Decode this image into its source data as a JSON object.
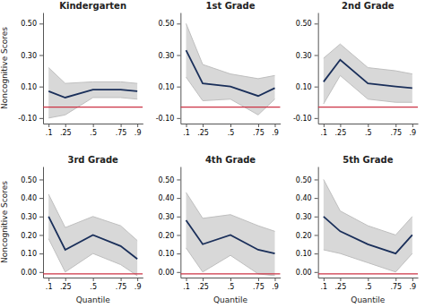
{
  "chart_data": [
    {
      "type": "line",
      "title": "Kindergarten",
      "ylabel": "Noncognitive Scores",
      "x": [
        0.1,
        0.25,
        0.5,
        0.75,
        0.9
      ],
      "xlim": [
        0.05,
        0.95
      ],
      "xticks": [
        {
          "value": 0.1,
          "label": ".1"
        },
        {
          "value": 0.25,
          "label": ".25"
        },
        {
          "value": 0.5,
          "label": ".5"
        },
        {
          "value": 0.75,
          "label": ".75"
        },
        {
          "value": 0.9,
          "label": ".9"
        }
      ],
      "ylim": [
        -0.135,
        0.57
      ],
      "yticks": [
        {
          "value": -0.1,
          "label": "-0.10"
        },
        {
          "value": 0.1,
          "label": "0.10"
        },
        {
          "value": 0.3,
          "label": "0.30"
        },
        {
          "value": 0.5,
          "label": "0.50"
        }
      ],
      "series": [
        {
          "type": "area",
          "color": "#d8d8d8",
          "values": [
            0.22,
            0.12,
            0.13,
            0.13,
            0.12
          ],
          "lower": [
            -0.1,
            -0.08,
            0.03,
            0.03,
            0.02
          ]
        },
        {
          "type": "rule",
          "color": "#cc3344",
          "value": -0.03
        },
        {
          "type": "line",
          "color": "#1a2f5a",
          "values": [
            0.07,
            0.03,
            0.08,
            0.08,
            0.07
          ]
        }
      ]
    },
    {
      "type": "line",
      "title": "1st Grade",
      "x": [
        0.1,
        0.25,
        0.5,
        0.75,
        0.9
      ],
      "xlim": [
        0.05,
        0.95
      ],
      "xticks": [
        {
          "value": 0.1,
          "label": ".1"
        },
        {
          "value": 0.25,
          "label": ".25"
        },
        {
          "value": 0.5,
          "label": ".5"
        },
        {
          "value": 0.75,
          "label": ".75"
        },
        {
          "value": 0.9,
          "label": ".9"
        }
      ],
      "ylim": [
        -0.135,
        0.57
      ],
      "yticks": [
        {
          "value": -0.1,
          "label": "-0.10"
        },
        {
          "value": 0.1,
          "label": "0.10"
        },
        {
          "value": 0.3,
          "label": "0.30"
        },
        {
          "value": 0.5,
          "label": "0.50"
        }
      ],
      "series": [
        {
          "type": "area",
          "color": "#d8d8d8",
          "values": [
            0.5,
            0.24,
            0.18,
            0.15,
            0.17
          ],
          "lower": [
            0.16,
            0.01,
            0.02,
            -0.08,
            0.02
          ]
        },
        {
          "type": "rule",
          "color": "#cc3344",
          "value": -0.03
        },
        {
          "type": "line",
          "color": "#1a2f5a",
          "values": [
            0.33,
            0.12,
            0.1,
            0.04,
            0.09
          ]
        }
      ]
    },
    {
      "type": "line",
      "title": "2nd Grade",
      "x": [
        0.1,
        0.25,
        0.5,
        0.75,
        0.9
      ],
      "xlim": [
        0.05,
        0.95
      ],
      "xticks": [
        {
          "value": 0.1,
          "label": ".1"
        },
        {
          "value": 0.25,
          "label": ".25"
        },
        {
          "value": 0.5,
          "label": ".5"
        },
        {
          "value": 0.75,
          "label": ".75"
        },
        {
          "value": 0.9,
          "label": ".9"
        }
      ],
      "ylim": [
        -0.135,
        0.57
      ],
      "yticks": [
        {
          "value": -0.1,
          "label": "-0.10"
        },
        {
          "value": 0.1,
          "label": "0.10"
        },
        {
          "value": 0.3,
          "label": "0.30"
        },
        {
          "value": 0.5,
          "label": "0.50"
        }
      ],
      "series": [
        {
          "type": "area",
          "color": "#d8d8d8",
          "values": [
            0.28,
            0.37,
            0.22,
            0.2,
            0.18
          ],
          "lower": [
            -0.01,
            0.17,
            0.02,
            0.0,
            0.0
          ]
        },
        {
          "type": "rule",
          "color": "#cc3344",
          "value": -0.03
        },
        {
          "type": "line",
          "color": "#1a2f5a",
          "values": [
            0.13,
            0.27,
            0.12,
            0.1,
            0.09
          ]
        }
      ]
    },
    {
      "type": "line",
      "title": "3rd Grade",
      "ylabel": "Noncognitive Scores",
      "xlabel": "Quantile",
      "x": [
        0.1,
        0.25,
        0.5,
        0.75,
        0.9
      ],
      "xlim": [
        0.05,
        0.95
      ],
      "xticks": [
        {
          "value": 0.1,
          "label": ".1"
        },
        {
          "value": 0.25,
          "label": ".25"
        },
        {
          "value": 0.5,
          "label": ".5"
        },
        {
          "value": 0.75,
          "label": ".75"
        },
        {
          "value": 0.9,
          "label": ".9"
        }
      ],
      "ylim": [
        -0.03,
        0.57
      ],
      "yticks": [
        {
          "value": 0.0,
          "label": "0.00"
        },
        {
          "value": 0.1,
          "label": "0.10"
        },
        {
          "value": 0.2,
          "label": "0.20"
        },
        {
          "value": 0.3,
          "label": "0.30"
        },
        {
          "value": 0.4,
          "label": "0.40"
        },
        {
          "value": 0.5,
          "label": "0.50"
        }
      ],
      "series": [
        {
          "type": "area",
          "color": "#d8d8d8",
          "values": [
            0.42,
            0.24,
            0.3,
            0.25,
            0.17
          ],
          "lower": [
            0.18,
            0.0,
            0.1,
            0.04,
            -0.02
          ]
        },
        {
          "type": "rule",
          "color": "#cc3344",
          "value": -0.01
        },
        {
          "type": "line",
          "color": "#1a2f5a",
          "values": [
            0.3,
            0.12,
            0.2,
            0.14,
            0.07
          ]
        }
      ]
    },
    {
      "type": "line",
      "title": "4th Grade",
      "xlabel": "Quantile",
      "x": [
        0.1,
        0.25,
        0.5,
        0.75,
        0.9
      ],
      "xlim": [
        0.05,
        0.95
      ],
      "xticks": [
        {
          "value": 0.1,
          "label": ".1"
        },
        {
          "value": 0.25,
          "label": ".25"
        },
        {
          "value": 0.5,
          "label": ".5"
        },
        {
          "value": 0.75,
          "label": ".75"
        },
        {
          "value": 0.9,
          "label": ".9"
        }
      ],
      "ylim": [
        -0.03,
        0.57
      ],
      "yticks": [
        {
          "value": 0.0,
          "label": "0.00"
        },
        {
          "value": 0.1,
          "label": "0.10"
        },
        {
          "value": 0.2,
          "label": "0.20"
        },
        {
          "value": 0.3,
          "label": "0.30"
        },
        {
          "value": 0.4,
          "label": "0.40"
        },
        {
          "value": 0.5,
          "label": "0.50"
        }
      ],
      "series": [
        {
          "type": "area",
          "color": "#d8d8d8",
          "values": [
            0.43,
            0.29,
            0.31,
            0.25,
            0.22
          ],
          "lower": [
            0.13,
            0.0,
            0.09,
            -0.01,
            -0.02
          ]
        },
        {
          "type": "rule",
          "color": "#cc3344",
          "value": -0.01
        },
        {
          "type": "line",
          "color": "#1a2f5a",
          "values": [
            0.28,
            0.15,
            0.2,
            0.12,
            0.1
          ]
        }
      ]
    },
    {
      "type": "line",
      "title": "5th Grade",
      "xlabel": "Quantile",
      "x": [
        0.1,
        0.25,
        0.5,
        0.75,
        0.9
      ],
      "xlim": [
        0.05,
        0.95
      ],
      "xticks": [
        {
          "value": 0.1,
          "label": ".1"
        },
        {
          "value": 0.25,
          "label": ".25"
        },
        {
          "value": 0.5,
          "label": ".5"
        },
        {
          "value": 0.75,
          "label": ".75"
        },
        {
          "value": 0.9,
          "label": ".9"
        }
      ],
      "ylim": [
        -0.03,
        0.57
      ],
      "yticks": [
        {
          "value": 0.0,
          "label": "0.00"
        },
        {
          "value": 0.1,
          "label": "0.10"
        },
        {
          "value": 0.2,
          "label": "0.20"
        },
        {
          "value": 0.3,
          "label": "0.30"
        },
        {
          "value": 0.4,
          "label": "0.40"
        },
        {
          "value": 0.5,
          "label": "0.50"
        }
      ],
      "series": [
        {
          "type": "area",
          "color": "#d8d8d8",
          "values": [
            0.5,
            0.33,
            0.25,
            0.2,
            0.3
          ],
          "lower": [
            0.12,
            0.1,
            0.05,
            0.0,
            0.1
          ]
        },
        {
          "type": "rule",
          "color": "#cc3344",
          "value": -0.01
        },
        {
          "type": "line",
          "color": "#1a2f5a",
          "values": [
            0.3,
            0.22,
            0.15,
            0.1,
            0.2
          ]
        }
      ]
    }
  ]
}
